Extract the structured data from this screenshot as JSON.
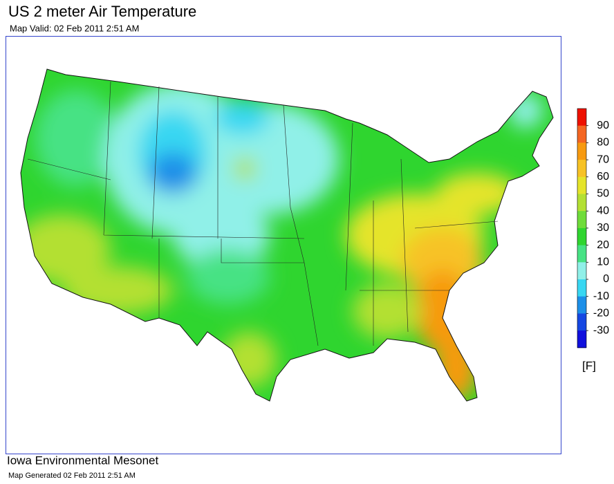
{
  "header": {
    "title": "US 2 meter Air Temperature",
    "subtitle": "Map Valid: 02 Feb 2011 2:51 AM"
  },
  "legend": {
    "ticks": [
      90,
      80,
      70,
      60,
      50,
      40,
      30,
      20,
      10,
      0,
      -10,
      -20,
      -30
    ],
    "unit": "[F]",
    "colors": [
      "#ee1100",
      "#f46622",
      "#f79a10",
      "#f7c225",
      "#e5e42a",
      "#b3e033",
      "#6fdc3a",
      "#2fd52f",
      "#47e284",
      "#90f0e8",
      "#38d7f2",
      "#1c8fe8",
      "#1547e2",
      "#1010dd"
    ]
  },
  "footer": {
    "org": "Iowa Environmental Mesonet",
    "generated": "Map Generated 02 Feb 2011 2:51 AM"
  }
}
